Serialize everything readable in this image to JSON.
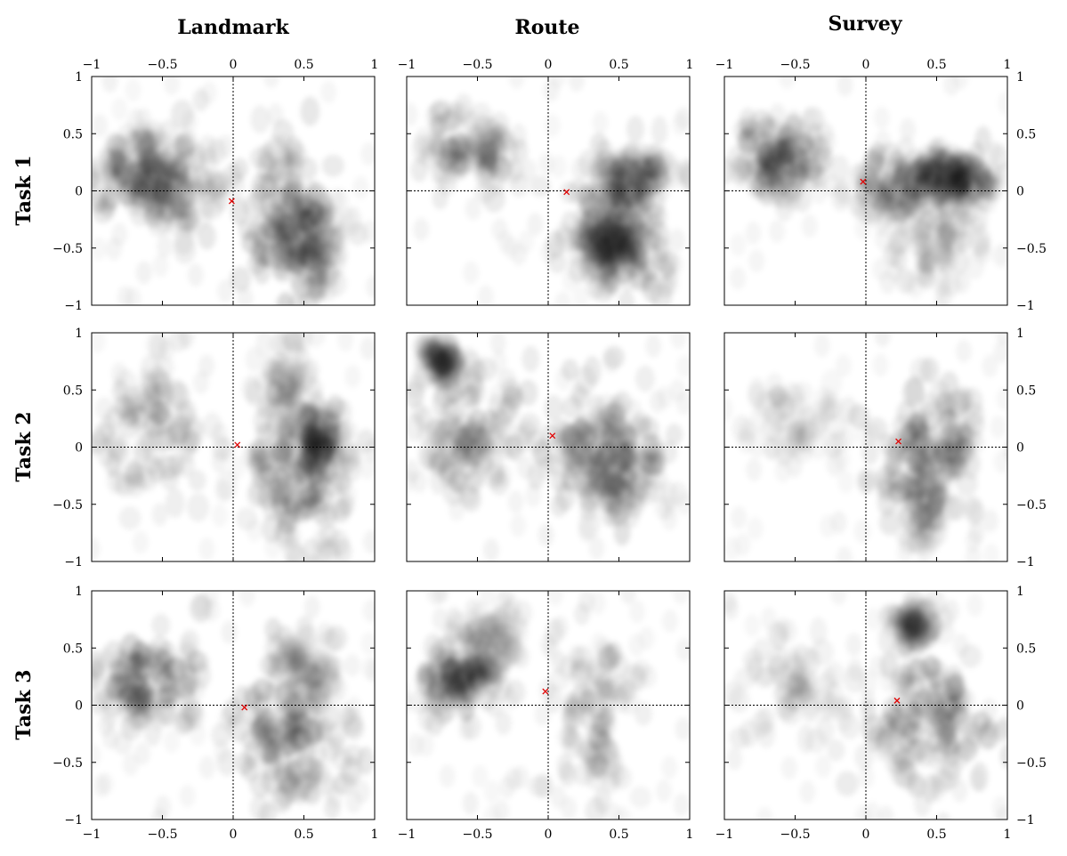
{
  "chart_data": {
    "type": "heatmap",
    "columns": [
      "Landmark",
      "Route",
      "Survey"
    ],
    "rows": [
      "Task 1",
      "Task 2",
      "Task 3"
    ],
    "xlim": [
      -1,
      1
    ],
    "ylim": [
      -1,
      1
    ],
    "xticks": [
      -1,
      -0.5,
      0,
      0.5,
      1
    ],
    "yticks": [
      -1,
      -0.5,
      0,
      0.5,
      1
    ],
    "xtick_labels": [
      "−1",
      "−0.5",
      "0",
      "0.5",
      "1"
    ],
    "ytick_labels": [
      "−1",
      "−0.5",
      "0",
      "0.5",
      "1"
    ],
    "reference_lines": {
      "x": 0,
      "y": 0,
      "style": "dotted"
    },
    "marker_color": "#e00000",
    "density_color": "#000000",
    "grid": false,
    "panels": [
      {
        "row": "Task 1",
        "column": "Landmark",
        "marker": [
          -0.01,
          -0.09
        ],
        "clusters": [
          [
            -0.6,
            0.12,
            0.2,
            0.18,
            0.9
          ],
          [
            -0.4,
            0.05,
            0.15,
            0.2,
            0.5
          ],
          [
            0.38,
            -0.25,
            0.17,
            0.35,
            1.0
          ],
          [
            0.52,
            -0.45,
            0.15,
            0.2,
            0.6
          ]
        ]
      },
      {
        "row": "Task 1",
        "column": "Route",
        "marker": [
          0.13,
          -0.01
        ],
        "clusters": [
          [
            -0.55,
            0.38,
            0.2,
            0.2,
            0.6
          ],
          [
            0.45,
            -0.22,
            0.18,
            0.3,
            0.85
          ],
          [
            0.5,
            -0.5,
            0.12,
            0.15,
            0.9
          ],
          [
            0.6,
            0.12,
            0.15,
            0.15,
            0.6
          ]
        ]
      },
      {
        "row": "Task 1",
        "column": "Survey",
        "marker": [
          -0.02,
          0.08
        ],
        "clusters": [
          [
            -0.6,
            0.25,
            0.16,
            0.18,
            0.85
          ],
          [
            0.35,
            0.05,
            0.2,
            0.15,
            0.8
          ],
          [
            0.6,
            0.1,
            0.15,
            0.12,
            0.9
          ],
          [
            0.5,
            -0.45,
            0.15,
            0.2,
            0.35
          ]
        ]
      },
      {
        "row": "Task 2",
        "column": "Landmark",
        "marker": [
          0.03,
          0.02
        ],
        "clusters": [
          [
            -0.55,
            0.1,
            0.2,
            0.3,
            0.6
          ],
          [
            0.45,
            -0.25,
            0.18,
            0.3,
            0.85
          ],
          [
            0.6,
            0.05,
            0.1,
            0.15,
            0.7
          ],
          [
            0.35,
            0.55,
            0.1,
            0.2,
            0.3
          ]
        ]
      },
      {
        "row": "Task 2",
        "column": "Route",
        "marker": [
          0.03,
          0.1
        ],
        "clusters": [
          [
            -0.6,
            0.15,
            0.18,
            0.3,
            0.75
          ],
          [
            0.35,
            0.05,
            0.22,
            0.28,
            0.85
          ],
          [
            0.5,
            -0.25,
            0.15,
            0.2,
            0.55
          ],
          [
            -0.75,
            0.75,
            0.08,
            0.1,
            0.5
          ]
        ]
      },
      {
        "row": "Task 2",
        "column": "Survey",
        "marker": [
          0.23,
          0.05
        ],
        "clusters": [
          [
            0.45,
            -0.02,
            0.2,
            0.25,
            0.95
          ],
          [
            -0.5,
            0.25,
            0.2,
            0.2,
            0.2
          ],
          [
            0.4,
            -0.55,
            0.12,
            0.2,
            0.3
          ]
        ]
      },
      {
        "row": "Task 3",
        "column": "Landmark",
        "marker": [
          0.08,
          -0.02
        ],
        "clusters": [
          [
            -0.6,
            0.2,
            0.17,
            0.2,
            0.85
          ],
          [
            0.4,
            -0.25,
            0.2,
            0.28,
            0.95
          ],
          [
            0.5,
            0.35,
            0.12,
            0.15,
            0.35
          ]
        ]
      },
      {
        "row": "Task 3",
        "column": "Route",
        "marker": [
          -0.02,
          0.12
        ],
        "clusters": [
          [
            -0.65,
            0.25,
            0.14,
            0.16,
            0.9
          ],
          [
            0.35,
            -0.05,
            0.15,
            0.4,
            0.55
          ],
          [
            -0.4,
            0.6,
            0.12,
            0.15,
            0.3
          ]
        ]
      },
      {
        "row": "Task 3",
        "column": "Survey",
        "marker": [
          0.22,
          0.04
        ],
        "clusters": [
          [
            0.45,
            -0.15,
            0.2,
            0.3,
            0.95
          ],
          [
            0.35,
            0.7,
            0.08,
            0.1,
            0.45
          ],
          [
            -0.5,
            0.15,
            0.18,
            0.25,
            0.3
          ]
        ]
      }
    ]
  }
}
